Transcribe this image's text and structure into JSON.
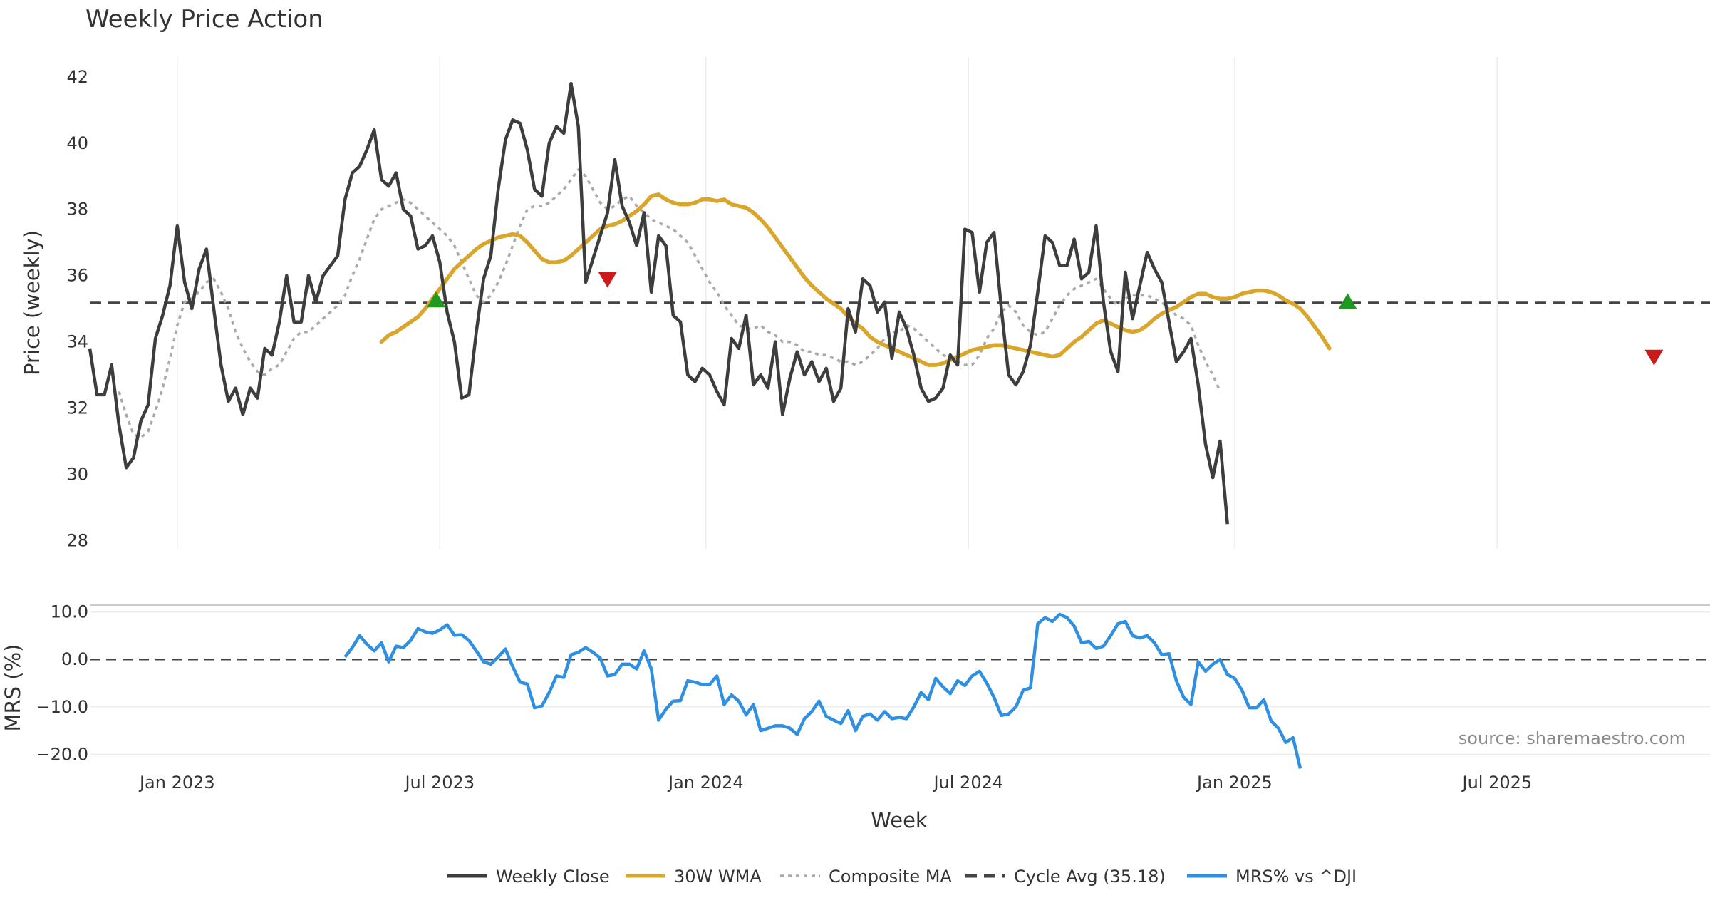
{
  "colors": {
    "close": "#3d3d3d",
    "wma": "#d9a52a",
    "composite": "#aaaaaa",
    "cycle": "#444444",
    "mrs": "#2f8fe0",
    "buy": "#1f9a1f",
    "sell": "#cc1a1a",
    "grid": "#ececec"
  },
  "chart_data": [
    {
      "id": "price",
      "type": "line",
      "title": "Weekly Price Action",
      "ylabel": "Price (weekly)",
      "ylim": [
        27.75,
        42.6
      ],
      "yticks": [
        28,
        30,
        32,
        34,
        36,
        38,
        40,
        42
      ],
      "x_start": 0,
      "x_labels": [
        {
          "x": 12,
          "label": "Jan 2023"
        },
        {
          "x": 48,
          "label": "Jul 2023"
        },
        {
          "x": 84.5,
          "label": "Jan 2024"
        },
        {
          "x": 120.5,
          "label": "Jul 2024"
        },
        {
          "x": 157,
          "label": "Jan 2025"
        },
        {
          "x": 193,
          "label": "Jul 2025"
        }
      ],
      "series": [
        {
          "name": "Weekly Close",
          "start": 0,
          "values": [
            33.8,
            32.4,
            32.4,
            33.3,
            31.5,
            30.2,
            30.5,
            31.6,
            32.1,
            34.1,
            34.8,
            35.7,
            37.5,
            35.8,
            35.0,
            36.2,
            36.8,
            35.0,
            33.3,
            32.2,
            32.6,
            31.8,
            32.6,
            32.3,
            33.8,
            33.6,
            34.6,
            36.0,
            34.6,
            34.6,
            36.0,
            35.2,
            36.0,
            36.3,
            36.6,
            38.3,
            39.1,
            39.3,
            39.8,
            40.4,
            38.9,
            38.7,
            39.1,
            38.0,
            37.8,
            36.8,
            36.9,
            37.2,
            36.4,
            34.9,
            34.0,
            32.3,
            32.4,
            34.3,
            35.9,
            36.6,
            38.6,
            40.1,
            40.7,
            40.6,
            39.8,
            38.6,
            38.4,
            40.0,
            40.5,
            40.3,
            41.8,
            40.5,
            35.8,
            36.5,
            37.2,
            37.9,
            39.5,
            38.1,
            37.6,
            36.9,
            37.9,
            35.5,
            37.2,
            36.9,
            34.8,
            34.6,
            33.0,
            32.8,
            33.2,
            33.0,
            32.5,
            32.1,
            34.1,
            33.8,
            34.8,
            32.7,
            33.0,
            32.6,
            34.0,
            31.8,
            32.9,
            33.7,
            33.0,
            33.4,
            32.8,
            33.2,
            32.2,
            32.6,
            35.0,
            34.3,
            35.9,
            35.7,
            34.9,
            35.2,
            33.5,
            34.9,
            34.4,
            33.6,
            32.6,
            32.2,
            32.3,
            32.6,
            33.6,
            33.3,
            37.4,
            37.3,
            35.5,
            37.0,
            37.3,
            35.0,
            33.0,
            32.7,
            33.1,
            33.9,
            35.5,
            37.2,
            37.0,
            36.3,
            36.3,
            37.1,
            35.9,
            36.1,
            37.5,
            35.2,
            33.7,
            33.1,
            36.1,
            34.7,
            35.7,
            36.7,
            36.2,
            35.8,
            34.6,
            33.4,
            33.7,
            34.1,
            32.7,
            30.9,
            29.9,
            31.0,
            28.5
          ]
        },
        {
          "name": "30W WMA",
          "start": 40,
          "values": [
            34.0,
            34.2,
            34.3,
            34.45,
            34.6,
            34.75,
            35.0,
            35.3,
            35.6,
            35.9,
            36.2,
            36.4,
            36.6,
            36.8,
            36.95,
            37.05,
            37.15,
            37.2,
            37.25,
            37.2,
            37.0,
            36.75,
            36.5,
            36.4,
            36.4,
            36.45,
            36.6,
            36.8,
            37.0,
            37.2,
            37.4,
            37.5,
            37.55,
            37.65,
            37.8,
            37.95,
            38.15,
            38.4,
            38.45,
            38.3,
            38.2,
            38.15,
            38.15,
            38.2,
            38.3,
            38.3,
            38.25,
            38.3,
            38.15,
            38.1,
            38.05,
            37.9,
            37.7,
            37.45,
            37.15,
            36.85,
            36.55,
            36.25,
            35.95,
            35.7,
            35.5,
            35.3,
            35.15,
            35.0,
            34.75,
            34.55,
            34.4,
            34.15,
            34.0,
            33.9,
            33.8,
            33.7,
            33.6,
            33.5,
            33.4,
            33.3,
            33.3,
            33.35,
            33.45,
            33.55,
            33.65,
            33.75,
            33.8,
            33.85,
            33.9,
            33.9,
            33.85,
            33.8,
            33.75,
            33.7,
            33.65,
            33.6,
            33.55,
            33.6,
            33.8,
            34.0,
            34.15,
            34.35,
            34.55,
            34.65,
            34.55,
            34.45,
            34.35,
            34.3,
            34.35,
            34.5,
            34.7,
            34.85,
            34.95,
            35.05,
            35.2,
            35.35,
            35.45,
            35.45,
            35.35,
            35.3,
            35.3,
            35.35,
            35.45,
            35.5,
            35.55,
            35.55,
            35.5,
            35.4,
            35.25,
            35.15,
            35.0,
            34.75,
            34.45,
            34.15,
            33.8
          ]
        },
        {
          "name": "Composite MA",
          "start": 4,
          "values": [
            32.5,
            31.8,
            31.2,
            31.1,
            31.3,
            31.9,
            32.6,
            33.5,
            34.5,
            35.2,
            35.3,
            35.5,
            35.8,
            35.9,
            35.5,
            35.0,
            34.3,
            33.8,
            33.4,
            33.1,
            33.0,
            33.2,
            33.3,
            33.7,
            34.1,
            34.3,
            34.3,
            34.5,
            34.7,
            34.9,
            35.1,
            35.4,
            36.0,
            36.5,
            37.1,
            37.7,
            38.0,
            38.1,
            38.2,
            38.3,
            38.2,
            38.0,
            37.8,
            37.6,
            37.4,
            37.2,
            36.9,
            36.4,
            35.9,
            35.4,
            35.2,
            35.4,
            35.8,
            36.3,
            36.9,
            37.5,
            38.0,
            38.1,
            38.1,
            38.2,
            38.4,
            38.6,
            38.9,
            39.2,
            39.0,
            38.6,
            38.2,
            38.0,
            38.1,
            38.3,
            38.4,
            38.1,
            37.9,
            37.7,
            37.6,
            37.5,
            37.4,
            37.2,
            37.0,
            36.6,
            36.2,
            35.8,
            35.5,
            35.1,
            34.8,
            34.5,
            34.4,
            34.4,
            34.5,
            34.3,
            34.2,
            34.0,
            34.0,
            33.9,
            33.7,
            33.7,
            33.6,
            33.6,
            33.5,
            33.4,
            33.4,
            33.3,
            33.4,
            33.6,
            33.8,
            34.1,
            34.3,
            34.3,
            34.5,
            34.4,
            34.2,
            34.0,
            33.8,
            33.6,
            33.5,
            33.4,
            33.3,
            33.3,
            33.6,
            34.1,
            34.4,
            34.9,
            35.1,
            34.9,
            34.5,
            34.3,
            34.2,
            34.3,
            34.7,
            35.1,
            35.4,
            35.6,
            35.7,
            35.8,
            35.9,
            35.6,
            35.3,
            35.1,
            35.3,
            35.4,
            35.4,
            35.4,
            35.3,
            35.2,
            35.0,
            34.8,
            34.7,
            34.5,
            33.9,
            33.4,
            33.0,
            32.5
          ]
        },
        {
          "name": "Cycle Avg (35.18)",
          "constant": 35.18
        }
      ],
      "markers": [
        {
          "kind": "buy",
          "x": 47.5,
          "y": 35.25
        },
        {
          "kind": "sell",
          "x": 71,
          "y": 35.9
        },
        {
          "kind": "buy",
          "x": 172.5,
          "y": 35.2
        },
        {
          "kind": "sell",
          "x": 214.5,
          "y": 33.55
        }
      ]
    },
    {
      "id": "mrs",
      "type": "line",
      "ylabel": "MRS (%)",
      "xlabel": "Week",
      "ylim": [
        -22.5,
        11.0
      ],
      "yticks": [
        10.0,
        0.0,
        -10.0,
        -20.0
      ],
      "ytick_labels": [
        "10.0",
        "0.0",
        "−10.0",
        "−20.0"
      ],
      "series": [
        {
          "name": "MRS% vs ^DJI",
          "start": 35,
          "values": [
            0.5,
            2.5,
            5.0,
            3.2,
            1.8,
            3.5,
            -0.5,
            2.8,
            2.5,
            4.0,
            6.5,
            5.8,
            5.5,
            6.2,
            7.3,
            5.1,
            5.2,
            4.0,
            1.8,
            -0.5,
            -1.0,
            0.5,
            2.2,
            -1.5,
            -4.8,
            -5.2,
            -10.2,
            -9.8,
            -7.0,
            -3.5,
            -3.8,
            1.0,
            1.5,
            2.5,
            1.5,
            0.3,
            -3.5,
            -3.2,
            -1.0,
            -1.0,
            -2.0,
            1.8,
            -2.0,
            -12.8,
            -10.5,
            -8.8,
            -8.7,
            -4.5,
            -4.8,
            -5.3,
            -5.3,
            -3.5,
            -9.5,
            -7.5,
            -8.8,
            -11.7,
            -9.5,
            -15.0,
            -14.5,
            -14.0,
            -14.0,
            -14.5,
            -15.8,
            -12.5,
            -11.0,
            -8.8,
            -12.0,
            -12.8,
            -13.5,
            -10.8,
            -15.0,
            -12.0,
            -11.5,
            -12.8,
            -11.0,
            -12.5,
            -12.2,
            -12.5,
            -10.0,
            -7.0,
            -8.5,
            -4.0,
            -5.8,
            -7.2,
            -4.5,
            -5.5,
            -3.5,
            -2.5,
            -5.0,
            -8.0,
            -11.8,
            -11.5,
            -10.0,
            -6.5,
            -6.0,
            7.5,
            8.8,
            8.0,
            9.5,
            8.8,
            7.0,
            3.5,
            3.8,
            2.3,
            2.8,
            5.0,
            7.5,
            8.0,
            5.0,
            4.5,
            5.0,
            3.5,
            1.0,
            1.2,
            -4.5,
            -8.0,
            -9.5,
            -0.5,
            -2.5,
            -1.0,
            0.0,
            -3.2,
            -4.0,
            -6.5,
            -10.2,
            -10.2,
            -8.5,
            -13.0,
            -14.5,
            -17.5,
            -16.5,
            -23.0
          ]
        }
      ],
      "source_note": "source: sharemaestro.com"
    }
  ],
  "legend": [
    {
      "label": "Weekly Close",
      "style": "solid",
      "color": "#3d3d3d"
    },
    {
      "label": "30W WMA",
      "style": "solid",
      "color": "#d9a52a"
    },
    {
      "label": "Composite MA",
      "style": "dotted",
      "color": "#aaaaaa"
    },
    {
      "label": "Cycle Avg (35.18)",
      "style": "dashed",
      "color": "#444444"
    },
    {
      "label": "MRS% vs ^DJI",
      "style": "solid",
      "color": "#2f8fe0"
    }
  ]
}
